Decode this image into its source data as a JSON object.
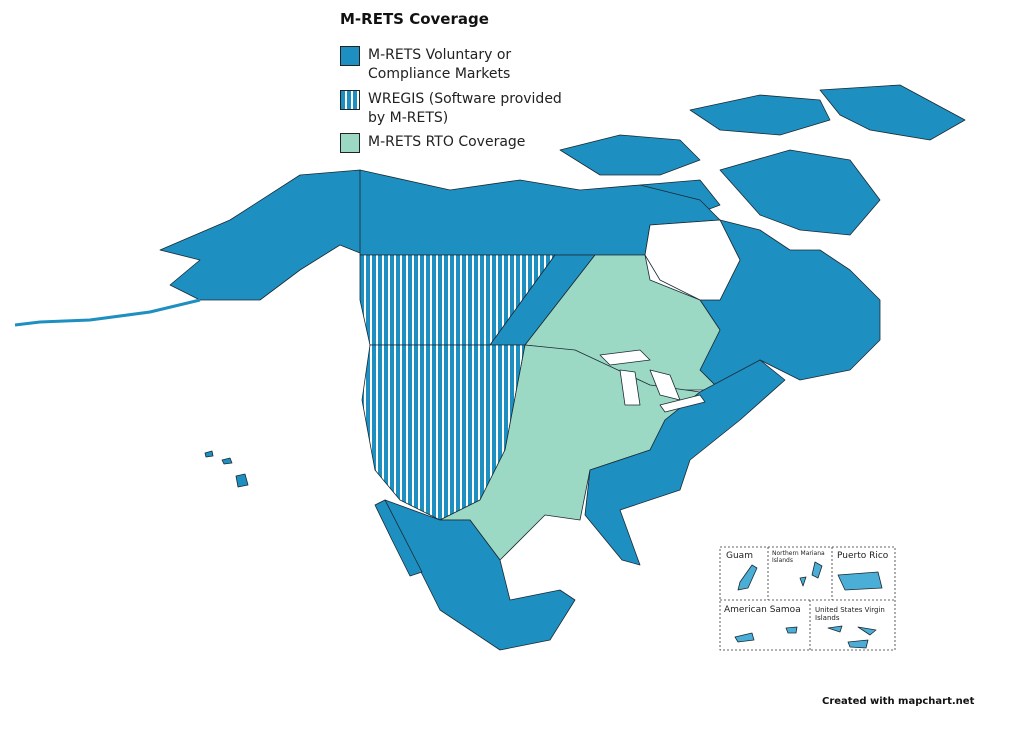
{
  "title": "M-RETS Coverage",
  "legend": [
    {
      "label": "M-RETS Voluntary or Compliance Markets",
      "color": "#1e8fc1"
    },
    {
      "label": "WREGIS (Software provided by M-RETS)",
      "color": "#1e8fc1"
    },
    {
      "label": "M-RETS RTO Coverage",
      "color": "#9bd9c5"
    }
  ],
  "insets": [
    {
      "label": "Guam"
    },
    {
      "label": "Northern Mariana Islands"
    },
    {
      "label": "Puerto Rico"
    },
    {
      "label": "American Samoa"
    },
    {
      "label": "United States Virgin Islands"
    }
  ],
  "credit": "Created with mapchart.net"
}
